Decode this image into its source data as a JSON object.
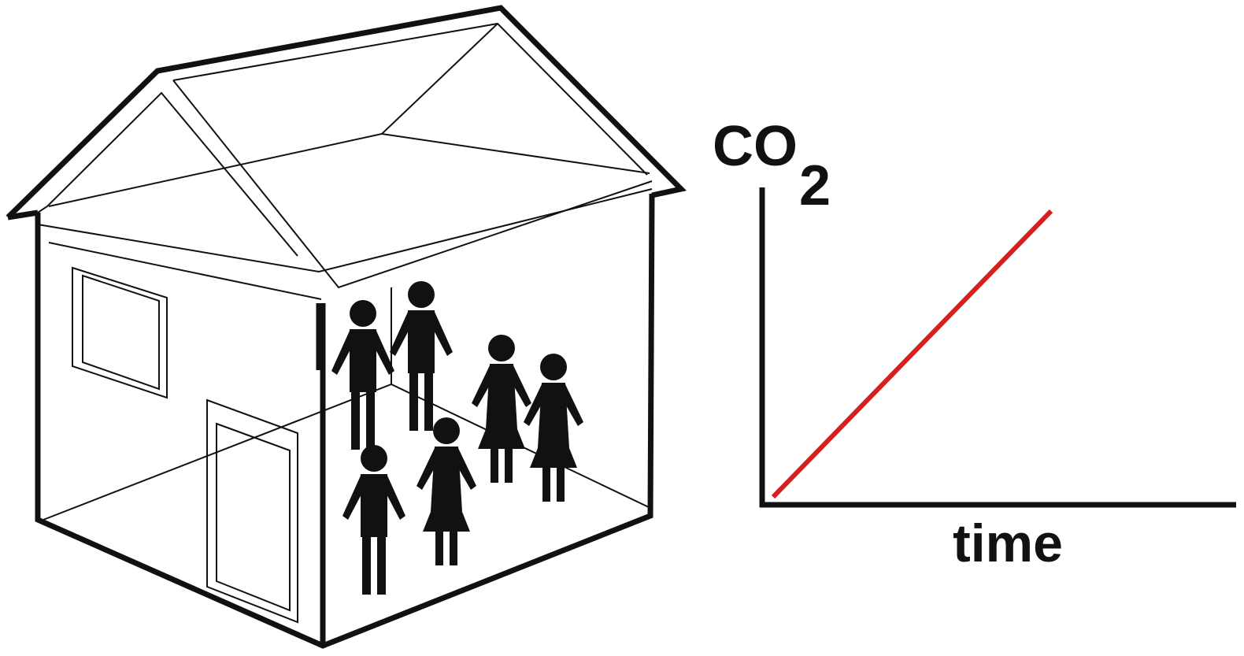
{
  "graph": {
    "y_label": "CO",
    "y_label_subscript": "2",
    "x_label": "time"
  }
}
